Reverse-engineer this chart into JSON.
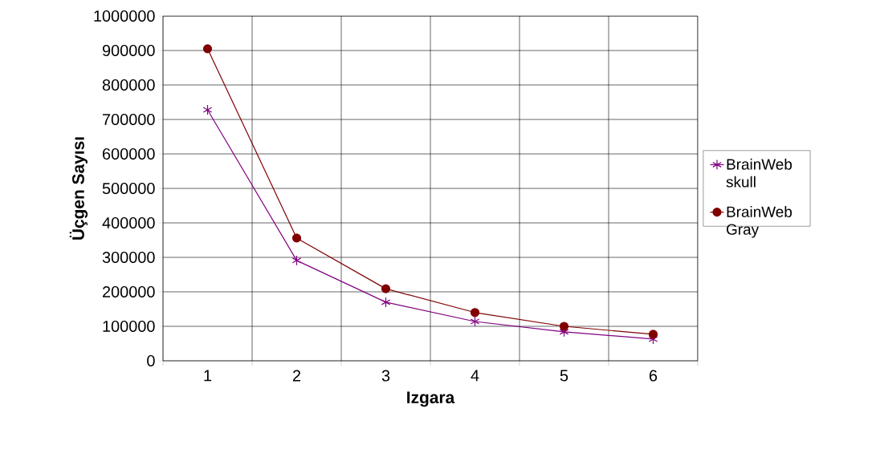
{
  "chart_data": {
    "type": "line",
    "xlabel": "Izgara",
    "ylabel": "Üçgen Sayısı",
    "categories": [
      "1",
      "2",
      "3",
      "4",
      "5",
      "6"
    ],
    "series": [
      {
        "name": "BrainWeb skull",
        "color": "#800080",
        "marker": "cross",
        "values": [
          728000,
          291000,
          170000,
          114000,
          84000,
          63000
        ]
      },
      {
        "name": "BrainWeb Gray",
        "color": "#800000",
        "marker": "circle",
        "values": [
          905000,
          356000,
          209000,
          140000,
          100000,
          77000
        ]
      }
    ],
    "ylim": [
      0,
      1000000
    ],
    "yticks": [
      0,
      100000,
      200000,
      300000,
      400000,
      500000,
      600000,
      700000,
      800000,
      900000,
      1000000
    ],
    "grid": true,
    "legend": "right"
  }
}
